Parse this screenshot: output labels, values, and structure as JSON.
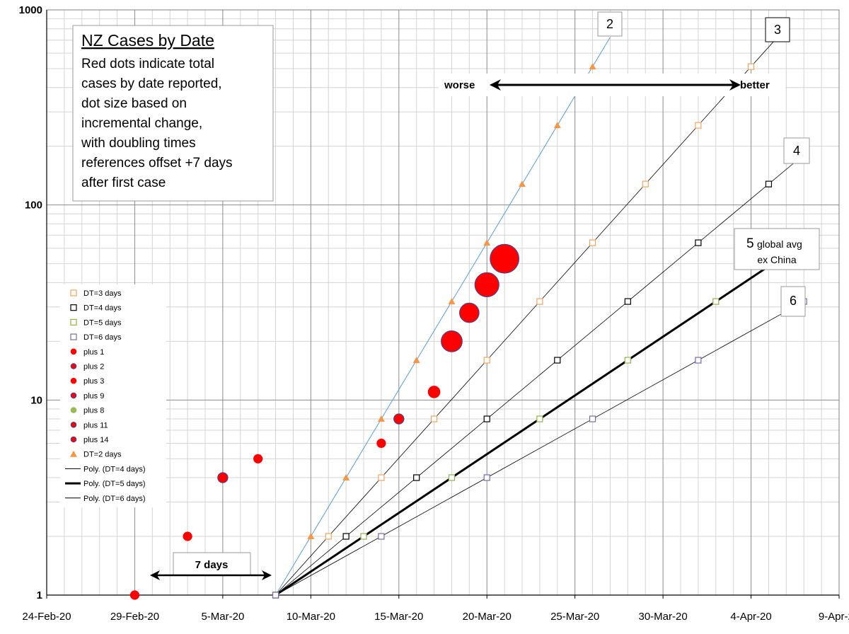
{
  "chart_data": {
    "type": "scatter",
    "x_scale": "date",
    "y_scale": "log",
    "ylim": [
      1,
      1000
    ],
    "xlim": [
      "2020-02-24",
      "2020-04-09"
    ],
    "x_ticks": [
      "24-Feb-20",
      "29-Feb-20",
      "5-Mar-20",
      "10-Mar-20",
      "15-Mar-20",
      "20-Mar-20",
      "25-Mar-20",
      "30-Mar-20",
      "4-Apr-20",
      "9-Apr-20"
    ],
    "y_ticks": [
      "1",
      "10",
      "100",
      "1000"
    ],
    "grid": true,
    "title": "NZ Cases by Date",
    "description_lines": [
      "Red dots indicate total",
      "cases by date reported,",
      "dot size based on",
      "incremental change,",
      "with doubling times",
      "references offset +7 days",
      "after first case"
    ],
    "annotations": {
      "worse": "worse",
      "better": "better",
      "seven_days": "7 days",
      "dt2": "2",
      "dt3": "3",
      "dt4": "4",
      "dt5_num": "5",
      "dt5_l1": "global avg",
      "dt5_l2": "ex China",
      "dt6": "6"
    },
    "legend": [
      {
        "label": "DT=3 days",
        "marker": "square-open",
        "color": "#f5a35c"
      },
      {
        "label": "DT=4 days",
        "marker": "square-open",
        "color": "#000000"
      },
      {
        "label": "DT=5 days",
        "marker": "square-open",
        "color": "#8fb34a"
      },
      {
        "label": "DT=6 days",
        "marker": "square-open",
        "color": "#7a6aa8"
      },
      {
        "label": "plus 1",
        "marker": "dot",
        "color": "#ff0000",
        "edge": "#ff0000"
      },
      {
        "label": "plus 2",
        "marker": "dot",
        "color": "#ff0000",
        "edge": "#2e4da8"
      },
      {
        "label": "plus 3",
        "marker": "dot",
        "color": "#ff0000",
        "edge": "#ff0000"
      },
      {
        "label": "plus 9",
        "marker": "dot",
        "color": "#ff0000",
        "edge": "#2e4da8"
      },
      {
        "label": "plus 8",
        "marker": "dot",
        "color": "#9bbb59",
        "edge": "#9bbb59"
      },
      {
        "label": "plus 11",
        "marker": "dot",
        "color": "#ff0000",
        "edge": "#2e4da8"
      },
      {
        "label": "plus 14",
        "marker": "dot",
        "color": "#ff0000",
        "edge": "#2e4da8"
      },
      {
        "label": "DT=2 days",
        "marker": "triangle",
        "color": "#f79646"
      },
      {
        "label": "Poly. (DT=4 days)",
        "marker": "line",
        "color": "#000000",
        "width": 1
      },
      {
        "label": "Poly. (DT=5 days)",
        "marker": "line",
        "color": "#000000",
        "width": 3
      },
      {
        "label": "Poly. (DT=6 days)",
        "marker": "line",
        "color": "#000000",
        "width": 1
      }
    ],
    "series": [
      {
        "name": "NZ cases",
        "marker": "dot",
        "color": "#ff0000",
        "points": [
          {
            "x": "2020-02-29",
            "y": 1,
            "increment": 1
          },
          {
            "x": "2020-03-03",
            "y": 2,
            "increment": 1
          },
          {
            "x": "2020-03-05",
            "y": 4,
            "increment": 2
          },
          {
            "x": "2020-03-07",
            "y": 5,
            "increment": 1
          },
          {
            "x": "2020-03-14",
            "y": 6,
            "increment": 1
          },
          {
            "x": "2020-03-15",
            "y": 8,
            "increment": 2
          },
          {
            "x": "2020-03-17",
            "y": 11,
            "increment": 3
          },
          {
            "x": "2020-03-18",
            "y": 20,
            "increment": 9
          },
          {
            "x": "2020-03-19",
            "y": 28,
            "increment": 8
          },
          {
            "x": "2020-03-20",
            "y": 39,
            "increment": 11
          },
          {
            "x": "2020-03-21",
            "y": 53,
            "increment": 14
          }
        ]
      },
      {
        "name": "DT=2 days",
        "marker": "triangle",
        "color": "#f79646",
        "points": [
          {
            "x": "2020-03-08",
            "y": 1
          },
          {
            "x": "2020-03-10",
            "y": 2
          },
          {
            "x": "2020-03-12",
            "y": 4
          },
          {
            "x": "2020-03-14",
            "y": 8
          },
          {
            "x": "2020-03-16",
            "y": 16
          },
          {
            "x": "2020-03-18",
            "y": 32
          },
          {
            "x": "2020-03-20",
            "y": 64
          },
          {
            "x": "2020-03-22",
            "y": 128
          },
          {
            "x": "2020-03-24",
            "y": 256
          },
          {
            "x": "2020-03-26",
            "y": 512
          }
        ]
      },
      {
        "name": "DT=3 days",
        "marker": "square-open",
        "color": "#f5a35c",
        "points": [
          {
            "x": "2020-03-08",
            "y": 1
          },
          {
            "x": "2020-03-11",
            "y": 2
          },
          {
            "x": "2020-03-14",
            "y": 4
          },
          {
            "x": "2020-03-17",
            "y": 8
          },
          {
            "x": "2020-03-20",
            "y": 16
          },
          {
            "x": "2020-03-23",
            "y": 32
          },
          {
            "x": "2020-03-26",
            "y": 64
          },
          {
            "x": "2020-03-29",
            "y": 128
          },
          {
            "x": "2020-04-01",
            "y": 256
          },
          {
            "x": "2020-04-04",
            "y": 512
          }
        ]
      },
      {
        "name": "DT=4 days",
        "marker": "square-open",
        "color": "#000000",
        "points": [
          {
            "x": "2020-03-08",
            "y": 1
          },
          {
            "x": "2020-03-12",
            "y": 2
          },
          {
            "x": "2020-03-16",
            "y": 4
          },
          {
            "x": "2020-03-20",
            "y": 8
          },
          {
            "x": "2020-03-24",
            "y": 16
          },
          {
            "x": "2020-03-28",
            "y": 32
          },
          {
            "x": "2020-04-01",
            "y": 64
          },
          {
            "x": "2020-04-05",
            "y": 128
          }
        ]
      },
      {
        "name": "DT=5 days",
        "marker": "square-open",
        "color": "#8fb34a",
        "points": [
          {
            "x": "2020-03-08",
            "y": 1
          },
          {
            "x": "2020-03-13",
            "y": 2
          },
          {
            "x": "2020-03-18",
            "y": 4
          },
          {
            "x": "2020-03-23",
            "y": 8
          },
          {
            "x": "2020-03-28",
            "y": 16
          },
          {
            "x": "2020-04-02",
            "y": 32
          }
        ]
      },
      {
        "name": "DT=6 days",
        "marker": "square-open",
        "color": "#7a6aa8",
        "points": [
          {
            "x": "2020-03-08",
            "y": 1
          },
          {
            "x": "2020-03-14",
            "y": 2
          },
          {
            "x": "2020-03-20",
            "y": 4
          },
          {
            "x": "2020-03-26",
            "y": 8
          },
          {
            "x": "2020-04-01",
            "y": 16
          },
          {
            "x": "2020-04-07",
            "y": 32
          }
        ]
      }
    ],
    "reference_lines": [
      {
        "name": "DT=2 days",
        "start": "2020-03-08",
        "doubling_days": 2,
        "end": "2020-03-27",
        "color": "#5b9bd5",
        "width": 1
      },
      {
        "name": "DT=3 days",
        "start": "2020-03-08",
        "doubling_days": 3,
        "end": "2020-04-06",
        "color": "#000000",
        "width": 0.8
      },
      {
        "name": "Poly. (DT=4 days)",
        "start": "2020-03-08",
        "doubling_days": 4,
        "end": "2020-04-07",
        "color": "#000000",
        "width": 0.8
      },
      {
        "name": "Poly. (DT=5 days)",
        "start": "2020-03-08",
        "doubling_days": 5,
        "end": "2020-04-05",
        "color": "#000000",
        "width": 3
      },
      {
        "name": "Poly. (DT=6 days)",
        "start": "2020-03-08",
        "doubling_days": 6,
        "end": "2020-04-07",
        "color": "#000000",
        "width": 0.8
      }
    ]
  }
}
